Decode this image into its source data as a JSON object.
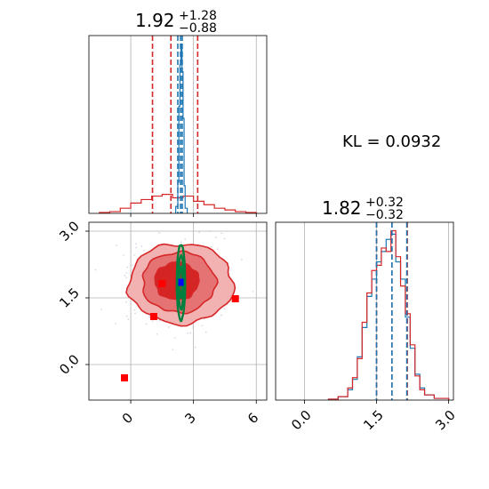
{
  "chart_data": [
    {
      "type": "histogram",
      "panel": "top-left",
      "title": {
        "value": "1.92",
        "plus": "+1.28",
        "minus": "−0.88"
      },
      "xlim": [
        -2,
        6.5
      ],
      "xticks": [
        0,
        3,
        6
      ],
      "grid": true,
      "series": [
        {
          "color": "#d62728",
          "style": "step",
          "bins": [
            -1.5,
            -1.0,
            -0.5,
            0.0,
            0.5,
            1.0,
            1.5,
            2.0,
            2.5,
            3.0,
            3.5,
            4.0,
            4.5,
            5.0,
            5.5,
            6.0
          ],
          "values": [
            0.005,
            0.01,
            0.03,
            0.06,
            0.08,
            0.1,
            0.11,
            0.09,
            0.1,
            0.07,
            0.05,
            0.03,
            0.02,
            0.01,
            0.005
          ]
        },
        {
          "color": "#1f77b4",
          "style": "step",
          "bins": [
            2.15,
            2.25,
            2.3,
            2.35,
            2.4,
            2.45,
            2.5,
            2.55,
            2.6,
            2.7
          ],
          "values": [
            0.04,
            0.18,
            0.62,
            0.86,
            0.98,
            0.82,
            0.55,
            0.16,
            0.03
          ]
        }
      ],
      "quantile_lines": [
        {
          "color": "#d62728",
          "x": [
            1.04,
            1.92,
            3.2
          ]
        },
        {
          "color": "#1f77b4",
          "x": [
            2.25,
            2.38,
            2.46
          ]
        }
      ]
    },
    {
      "type": "histogram",
      "panel": "bottom-right",
      "title": {
        "value": "1.82",
        "plus": "+0.32",
        "minus": "−0.32"
      },
      "xlim": [
        -0.6,
        3.1
      ],
      "xticks": [
        0.0,
        1.5,
        3.0
      ],
      "xtick_labels": [
        "0.0",
        "1.5",
        "3.0"
      ],
      "grid": true,
      "series": [
        {
          "color": "#1f77b4",
          "style": "step",
          "bins": [
            0.5,
            0.7,
            0.9,
            1.0,
            1.1,
            1.2,
            1.3,
            1.4,
            1.5,
            1.6,
            1.7,
            1.8,
            1.9,
            2.0,
            2.1,
            2.2,
            2.3,
            2.4,
            2.5,
            2.7,
            3.0
          ],
          "values": [
            0.005,
            0.02,
            0.06,
            0.12,
            0.25,
            0.42,
            0.6,
            0.7,
            0.8,
            0.86,
            0.93,
            0.96,
            0.8,
            0.7,
            0.48,
            0.3,
            0.15,
            0.07,
            0.03,
            0.01
          ]
        },
        {
          "color": "#d62728",
          "style": "step",
          "bins": [
            0.5,
            0.7,
            0.9,
            1.0,
            1.1,
            1.2,
            1.3,
            1.4,
            1.5,
            1.6,
            1.7,
            1.8,
            1.9,
            2.0,
            2.1,
            2.2,
            2.3,
            2.4,
            2.5,
            2.7,
            3.0
          ],
          "values": [
            0.005,
            0.02,
            0.07,
            0.13,
            0.24,
            0.45,
            0.62,
            0.75,
            0.78,
            0.88,
            0.86,
            0.98,
            0.83,
            0.66,
            0.5,
            0.32,
            0.14,
            0.06,
            0.03,
            0.01
          ]
        }
      ],
      "quantile_lines": [
        {
          "color": "#d62728",
          "x": [
            1.5,
            1.82,
            2.14
          ]
        },
        {
          "color": "#1f77b4",
          "x": [
            1.5,
            1.82,
            2.13
          ]
        }
      ]
    },
    {
      "type": "contour",
      "panel": "bottom-left",
      "xlim": [
        -2,
        6.5
      ],
      "ylim": [
        -0.8,
        3.2
      ],
      "xticks": [
        0,
        3,
        6
      ],
      "yticks": [
        0.0,
        1.5,
        3.0
      ],
      "ytick_labels": [
        "0.0",
        "1.5",
        "3.0"
      ],
      "grid": true,
      "red_contours": [
        {
          "level": "outer",
          "fill": "#f2b2b2",
          "cx": 2.4,
          "cy": 1.82,
          "rx": 2.5,
          "ry": 0.9
        },
        {
          "level": "middle",
          "fill": "#e57373",
          "cx": 2.3,
          "cy": 1.85,
          "rx": 1.75,
          "ry": 0.68
        },
        {
          "level": "inner",
          "fill": "#d42424",
          "cx": 2.2,
          "cy": 1.88,
          "rx": 1.05,
          "ry": 0.42
        }
      ],
      "green_contours": [
        {
          "cx": 2.4,
          "cy": 1.85,
          "rx": 0.2,
          "ry": 0.85
        },
        {
          "cx": 2.4,
          "cy": 1.85,
          "rx": 0.13,
          "ry": 0.6
        },
        {
          "cx": 2.4,
          "cy": 1.85,
          "rx": 0.07,
          "ry": 0.35
        }
      ],
      "red_points": [
        {
          "x": -0.3,
          "y": -0.3
        },
        {
          "x": 1.1,
          "y": 1.08
        },
        {
          "x": 1.5,
          "y": 1.82
        },
        {
          "x": 5.0,
          "y": 1.48
        }
      ],
      "blue_points": [
        {
          "x": 2.4,
          "y": 1.85
        }
      ],
      "scatter_seed": 7
    }
  ],
  "annotation": {
    "text": "KL = 0.0932"
  },
  "colors": {
    "red": "#d62728",
    "blue": "#1f77b4",
    "green": "#007f3f"
  }
}
